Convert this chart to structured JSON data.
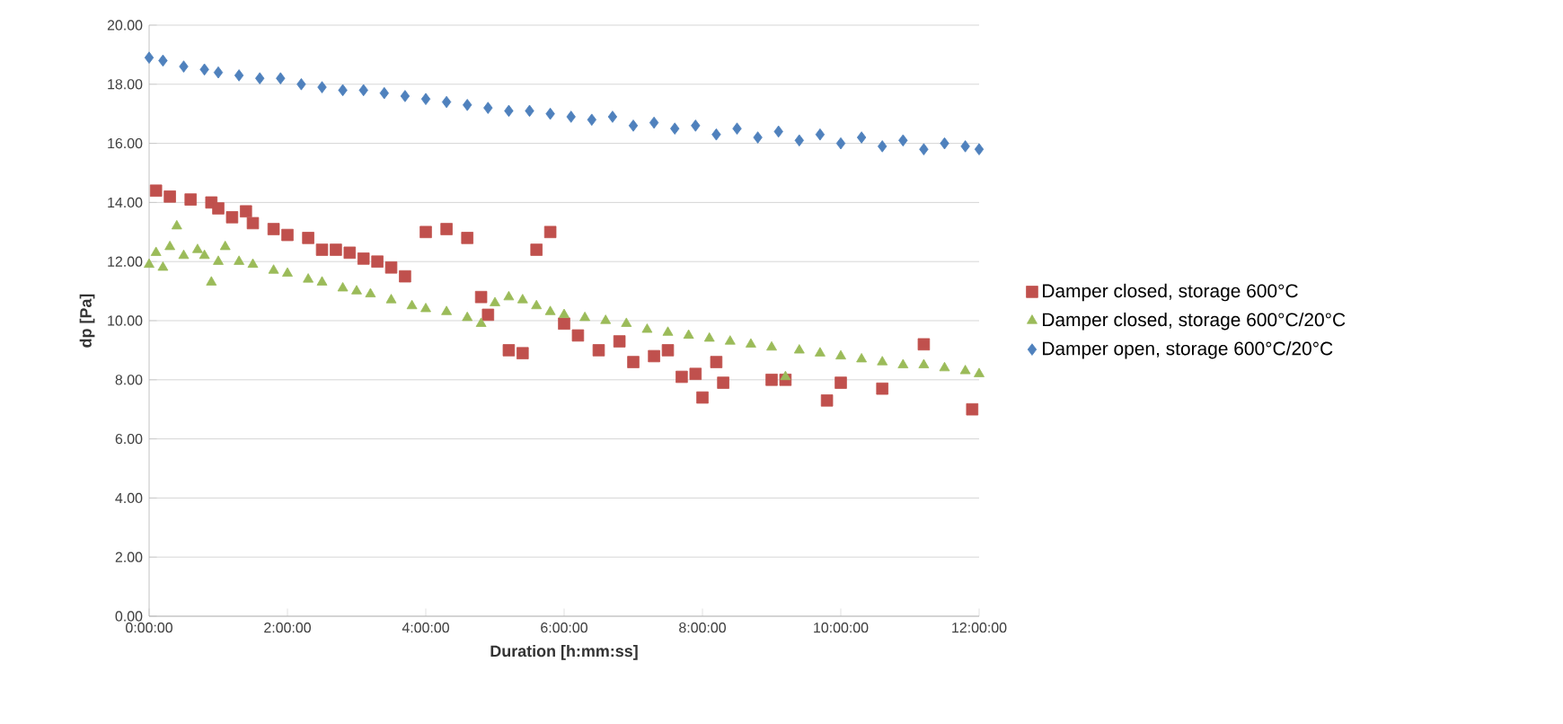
{
  "chart_data": {
    "type": "scatter",
    "xlabel": "Duration [h:mm:ss]",
    "ylabel": "dp [Pa]",
    "xlim": [
      0,
      12
    ],
    "ylim": [
      0,
      20
    ],
    "xticks": [
      {
        "value": 0,
        "label": "0:00:00"
      },
      {
        "value": 2,
        "label": "2:00:00"
      },
      {
        "value": 4,
        "label": "4:00:00"
      },
      {
        "value": 6,
        "label": "6:00:00"
      },
      {
        "value": 8,
        "label": "8:00:00"
      },
      {
        "value": 10,
        "label": "10:00:00"
      },
      {
        "value": 12,
        "label": "12:00:00"
      }
    ],
    "yticks": [
      {
        "value": 0,
        "label": "0.00"
      },
      {
        "value": 2,
        "label": "2.00"
      },
      {
        "value": 4,
        "label": "4.00"
      },
      {
        "value": 6,
        "label": "6.00"
      },
      {
        "value": 8,
        "label": "8.00"
      },
      {
        "value": 10,
        "label": "10.00"
      },
      {
        "value": 12,
        "label": "12.00"
      },
      {
        "value": 14,
        "label": "14.00"
      },
      {
        "value": 16,
        "label": "16.00"
      },
      {
        "value": 18,
        "label": "18.00"
      },
      {
        "value": 20,
        "label": "20.00"
      }
    ],
    "grid": "y",
    "legend": "right",
    "series": [
      {
        "name": "Damper closed, storage 600°C",
        "color": "#c0504d",
        "marker": "square",
        "x": [
          0.1,
          0.3,
          0.6,
          0.9,
          1.0,
          1.2,
          1.4,
          1.5,
          1.8,
          2.0,
          2.3,
          2.5,
          2.7,
          2.9,
          3.1,
          3.3,
          3.5,
          3.7,
          4.0,
          4.3,
          4.6,
          4.8,
          4.9,
          5.2,
          5.4,
          5.6,
          5.8,
          6.0,
          6.2,
          6.5,
          6.8,
          7.0,
          7.3,
          7.5,
          7.7,
          7.9,
          8.0,
          8.2,
          8.3,
          9.0,
          9.2,
          9.8,
          10.0,
          10.6,
          11.2,
          11.9
        ],
        "values": [
          14.4,
          14.2,
          14.1,
          14.0,
          13.8,
          13.5,
          13.7,
          13.3,
          13.1,
          12.9,
          12.8,
          12.4,
          12.4,
          12.3,
          12.1,
          12.0,
          11.8,
          11.5,
          13.0,
          13.1,
          12.8,
          10.8,
          10.2,
          9.0,
          8.9,
          12.4,
          13.0,
          9.9,
          9.5,
          9.0,
          9.3,
          8.6,
          8.8,
          9.0,
          8.1,
          8.2,
          7.4,
          8.6,
          7.9,
          8.0,
          8.0,
          7.3,
          7.9,
          7.7,
          9.2,
          7.0
        ]
      },
      {
        "name": "Damper closed, storage 600°C/20°C",
        "color": "#9bbb59",
        "marker": "triangle",
        "x": [
          0,
          0.1,
          0.2,
          0.3,
          0.4,
          0.5,
          0.7,
          0.8,
          0.9,
          1.0,
          1.1,
          1.3,
          1.5,
          1.8,
          2.0,
          2.3,
          2.5,
          2.8,
          3.0,
          3.2,
          3.5,
          3.8,
          4.0,
          4.3,
          4.6,
          4.8,
          5.0,
          5.2,
          5.4,
          5.6,
          5.8,
          6.0,
          6.3,
          6.6,
          6.9,
          7.2,
          7.5,
          7.8,
          8.1,
          8.4,
          8.7,
          9.0,
          9.2,
          9.4,
          9.7,
          10.0,
          10.3,
          10.6,
          10.9,
          11.2,
          11.5,
          11.8,
          12.0
        ],
        "values": [
          11.9,
          12.3,
          11.8,
          12.5,
          13.2,
          12.2,
          12.4,
          12.2,
          11.3,
          12.0,
          12.5,
          12.0,
          11.9,
          11.7,
          11.6,
          11.4,
          11.3,
          11.1,
          11.0,
          10.9,
          10.7,
          10.5,
          10.4,
          10.3,
          10.1,
          9.9,
          10.6,
          10.8,
          10.7,
          10.5,
          10.3,
          10.2,
          10.1,
          10.0,
          9.9,
          9.7,
          9.6,
          9.5,
          9.4,
          9.3,
          9.2,
          9.1,
          8.1,
          9.0,
          8.9,
          8.8,
          8.7,
          8.6,
          8.5,
          8.5,
          8.4,
          8.3,
          8.2
        ]
      },
      {
        "name": "Damper open, storage 600°C/20°C",
        "color": "#4f81bd",
        "marker": "diamond",
        "x": [
          0,
          0.2,
          0.5,
          0.8,
          1.0,
          1.3,
          1.6,
          1.9,
          2.2,
          2.5,
          2.8,
          3.1,
          3.4,
          3.7,
          4.0,
          4.3,
          4.6,
          4.9,
          5.2,
          5.5,
          5.8,
          6.1,
          6.4,
          6.7,
          7.0,
          7.3,
          7.6,
          7.9,
          8.2,
          8.5,
          8.8,
          9.1,
          9.4,
          9.7,
          10.0,
          10.3,
          10.6,
          10.9,
          11.2,
          11.5,
          11.8,
          12.0
        ],
        "values": [
          18.9,
          18.8,
          18.6,
          18.5,
          18.4,
          18.3,
          18.2,
          18.2,
          18.0,
          17.9,
          17.8,
          17.8,
          17.7,
          17.6,
          17.5,
          17.4,
          17.3,
          17.2,
          17.1,
          17.1,
          17.0,
          16.9,
          16.8,
          16.9,
          16.6,
          16.7,
          16.5,
          16.6,
          16.3,
          16.5,
          16.2,
          16.4,
          16.1,
          16.3,
          16.0,
          16.2,
          15.9,
          16.1,
          15.8,
          16.0,
          15.9,
          15.8
        ]
      }
    ]
  }
}
